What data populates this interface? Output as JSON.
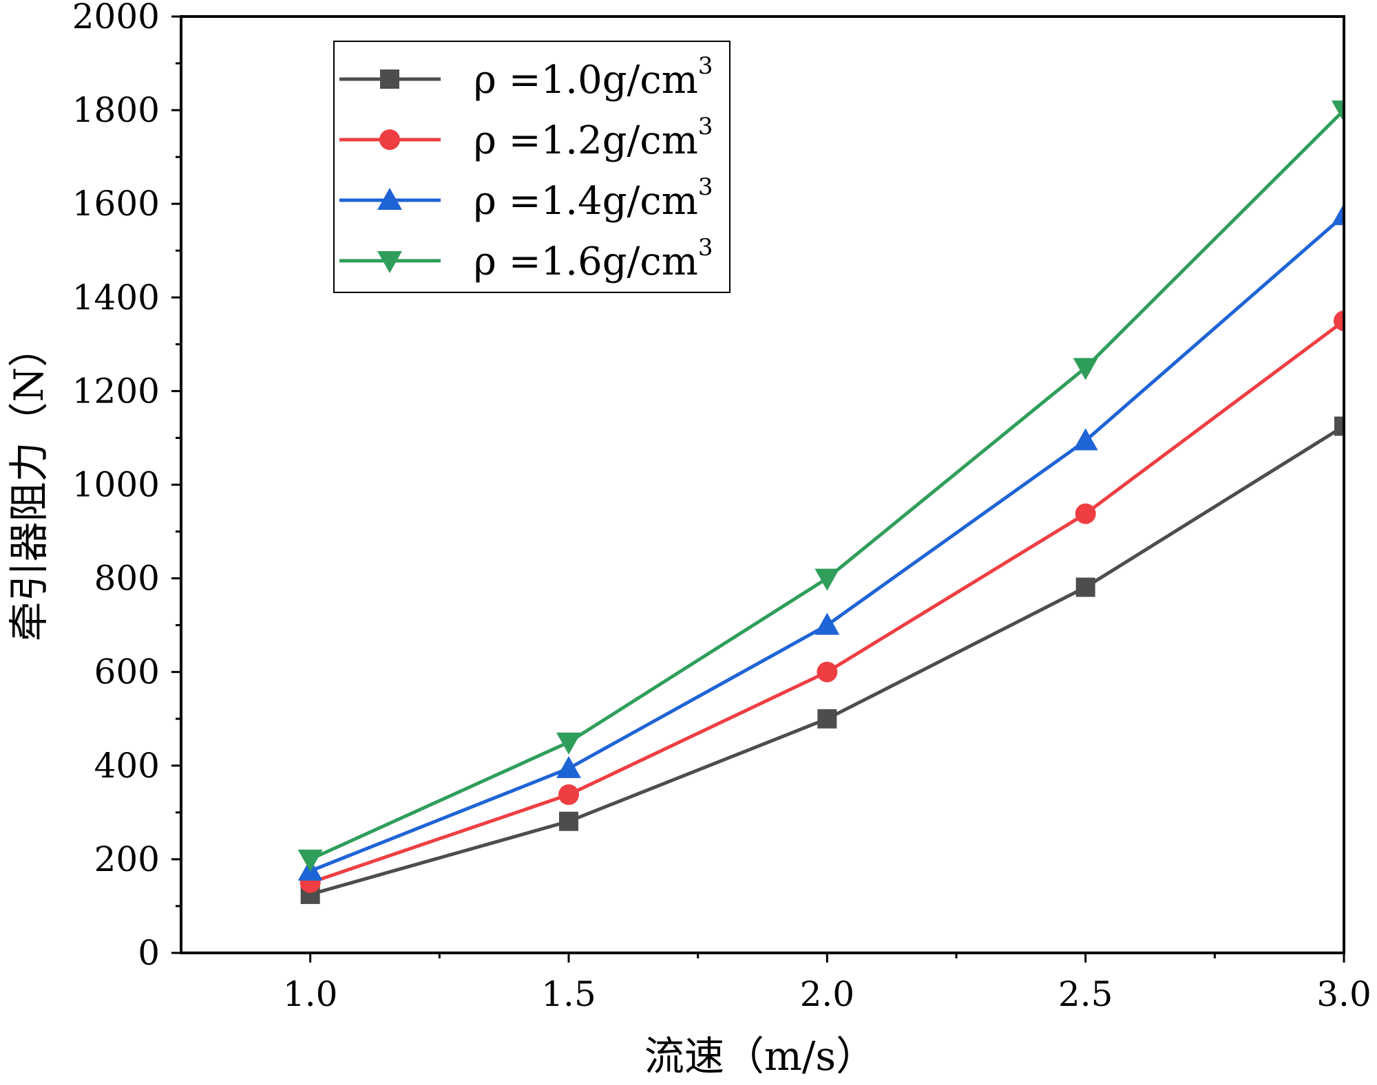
{
  "chart_data": {
    "type": "line",
    "title": "",
    "xlabel": "流速（m/s）",
    "ylabel": "牵引器阻力（N）",
    "xlim": [
      0.75,
      3.0
    ],
    "ylim": [
      0,
      2000
    ],
    "x": [
      1.0,
      1.5,
      2.0,
      2.5,
      3.0
    ],
    "x_tick_labels": [
      "1.0",
      "1.5",
      "2.0",
      "2.5",
      "3.0"
    ],
    "x_tick_values": [
      1.0,
      1.5,
      2.0,
      2.5,
      3.0
    ],
    "y_tick_labels": [
      "0",
      "200",
      "400",
      "600",
      "800",
      "1000",
      "1200",
      "1400",
      "1600",
      "1800",
      "2000"
    ],
    "y_tick_values": [
      0,
      200,
      400,
      600,
      800,
      1000,
      1200,
      1400,
      1600,
      1800,
      2000
    ],
    "grid": false,
    "legend_position": "top-left",
    "series": [
      {
        "name": "ρ =1.0g/cm",
        "sup": "3",
        "color": "#4d4d4d",
        "marker": "square",
        "values": [
          125,
          281,
          500,
          781,
          1125
        ]
      },
      {
        "name": "ρ =1.2g/cm",
        "sup": "3",
        "color": "#ef3e42",
        "marker": "circle",
        "values": [
          150,
          338,
          600,
          938,
          1350
        ]
      },
      {
        "name": "ρ =1.4g/cm",
        "sup": "3",
        "color": "#1f64d6",
        "marker": "triangle-up",
        "values": [
          175,
          394,
          700,
          1094,
          1575
        ]
      },
      {
        "name": "ρ =1.6g/cm",
        "sup": "3",
        "color": "#2f9e5a",
        "marker": "triangle-down",
        "values": [
          200,
          450,
          800,
          1250,
          1800
        ]
      }
    ]
  }
}
